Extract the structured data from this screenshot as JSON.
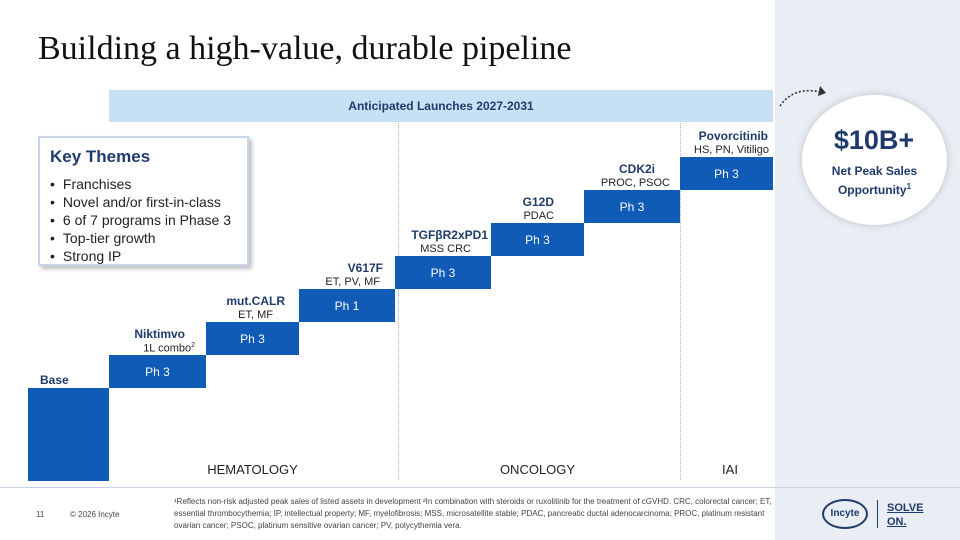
{
  "title": "Building a high-value, durable pipeline",
  "banner": "Anticipated Launches 2027-2031",
  "themes": {
    "title": "Key Themes",
    "items": [
      "Franchises",
      "Novel and/or first-in-class",
      "6 of 7 programs in Phase 3",
      "Top-tier growth",
      "Strong IP"
    ]
  },
  "base_label": "Base",
  "steps": [
    {
      "name": "Niktimvo",
      "sub": "1L combo",
      "sub_sup": "2",
      "phase": "Ph 3"
    },
    {
      "name": "mut.CALR",
      "sub": "ET, MF",
      "phase": "Ph 3"
    },
    {
      "name": "V617F",
      "sub": "ET, PV, MF",
      "phase": "Ph 1"
    },
    {
      "name": "TGFβR2xPD1",
      "sub": "MSS CRC",
      "phase": "Ph 3"
    },
    {
      "name": "G12D",
      "sub": "PDAC",
      "phase": "Ph 3"
    },
    {
      "name": "CDK2i",
      "sub": "PROC, PSOC",
      "phase": "Ph 3"
    },
    {
      "name": "Povorcitinib",
      "sub": "HS, PN, Vitiligo",
      "phase": "Ph 3"
    }
  ],
  "categories": [
    "HEMATOLOGY",
    "ONCOLOGY",
    "IAI"
  ],
  "opportunity": {
    "value": "$10B+",
    "label": "Net Peak Sales Opportunity",
    "sup": "1"
  },
  "footer": {
    "page": "11",
    "copyright": "© 2026 Incyte",
    "footnote": "¹Reflects non-risk adjusted peak sales of listed assets in development ²In combination with steroids or ruxolitinib for the treatment of cGVHD. CRC, colorectal cancer; ET, essential thrombocythemia; IP, intellectual property; MF, myelofibrosis; MSS, microsatellite stable; PDAC, pancreatic ductal adenocarcinoma; PROC, platinum resistant ovarian cancer; PSOC, platinum sensitive ovarian cancer; PV, polycythemia vera.",
    "logo": "Incyte",
    "tagline_1": "SOLVE",
    "tagline_2": "ON."
  },
  "colors": {
    "accent": "#0f5bb5",
    "navy": "#1f3b6b",
    "banner": "#c7e0f4",
    "panel": "#e9edf4"
  }
}
